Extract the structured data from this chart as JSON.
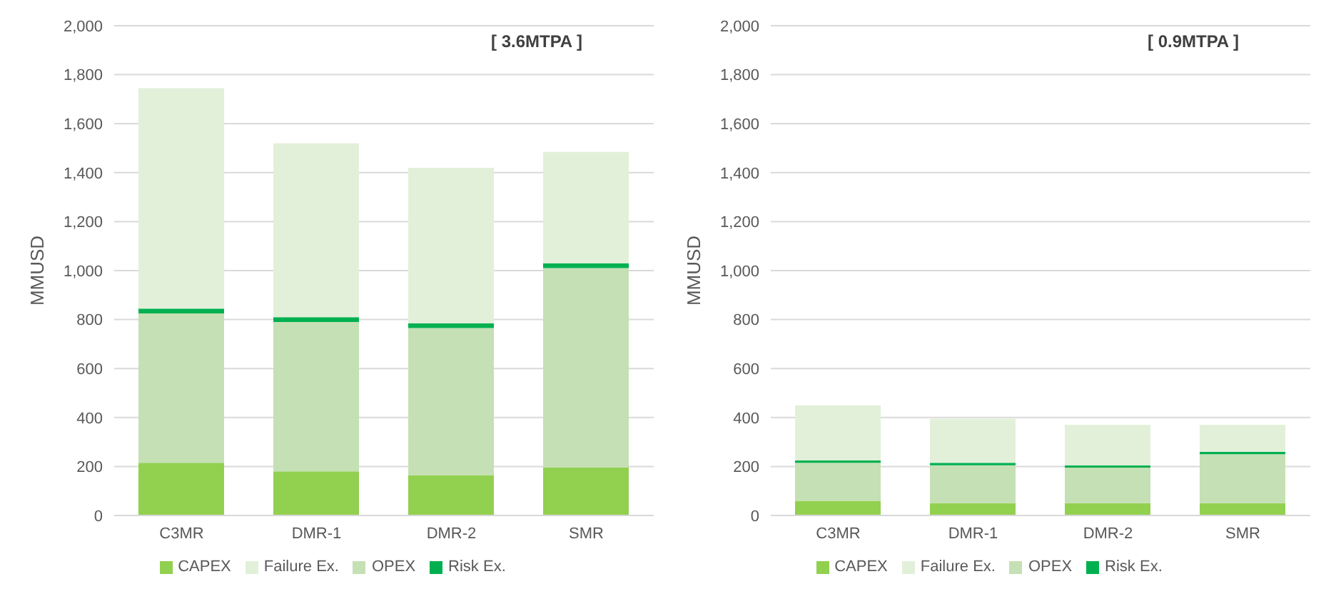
{
  "chart_data": [
    {
      "type": "bar",
      "stacked": true,
      "ylabel": "MMUSD",
      "annotations": [
        "[ 3.6MTPA ]"
      ],
      "categories": [
        "C3MR",
        "DMR-1",
        "DMR-2",
        "SMR"
      ],
      "series": [
        {
          "name": "CAPEX",
          "color": "#92d050",
          "values": [
            215,
            180,
            165,
            195
          ]
        },
        {
          "name": "OPEX",
          "color": "#c5e0b4",
          "values": [
            610,
            610,
            600,
            815
          ]
        },
        {
          "name": "Risk Ex.",
          "color": "#00b050",
          "values": [
            20,
            20,
            20,
            20
          ]
        },
        {
          "name": "Failure Ex.",
          "color": "#e2f0d9",
          "values": [
            900,
            710,
            635,
            455
          ]
        }
      ],
      "ylim": [
        0,
        2000
      ],
      "yticks": [
        {
          "value": 0,
          "label": "0"
        },
        {
          "value": 200,
          "label": "200"
        },
        {
          "value": 400,
          "label": "400"
        },
        {
          "value": 600,
          "label": "600"
        },
        {
          "value": 800,
          "label": "800"
        },
        {
          "value": 1000,
          "label": "1,000"
        },
        {
          "value": 1200,
          "label": "1,200"
        },
        {
          "value": 1400,
          "label": "1,400"
        },
        {
          "value": 1600,
          "label": "1,600"
        },
        {
          "value": 1800,
          "label": "1,800"
        },
        {
          "value": 2000,
          "label": "2,000"
        }
      ],
      "grid": "y",
      "legend": "bottom"
    },
    {
      "type": "bar",
      "stacked": true,
      "ylabel": "MMUSD",
      "annotations": [
        "[ 0.9MTPA ]"
      ],
      "categories": [
        "C3MR",
        "DMR-1",
        "DMR-2",
        "SMR"
      ],
      "series": [
        {
          "name": "CAPEX",
          "color": "#92d050",
          "values": [
            60,
            50,
            50,
            50
          ]
        },
        {
          "name": "OPEX",
          "color": "#c5e0b4",
          "values": [
            155,
            155,
            145,
            200
          ]
        },
        {
          "name": "Risk Ex.",
          "color": "#00b050",
          "values": [
            10,
            10,
            10,
            10
          ]
        },
        {
          "name": "Failure Ex.",
          "color": "#e2f0d9",
          "values": [
            225,
            180,
            165,
            110
          ]
        }
      ],
      "ylim": [
        0,
        2000
      ],
      "yticks": [
        {
          "value": 0,
          "label": "0"
        },
        {
          "value": 200,
          "label": "200"
        },
        {
          "value": 400,
          "label": "400"
        },
        {
          "value": 600,
          "label": "600"
        },
        {
          "value": 800,
          "label": "800"
        },
        {
          "value": 1000,
          "label": "1,000"
        },
        {
          "value": 1200,
          "label": "1,200"
        },
        {
          "value": 1400,
          "label": "1,400"
        },
        {
          "value": 1600,
          "label": "1,600"
        },
        {
          "value": 1800,
          "label": "1,800"
        },
        {
          "value": 2000,
          "label": "2,000"
        }
      ],
      "grid": "y",
      "legend": "bottom"
    }
  ]
}
